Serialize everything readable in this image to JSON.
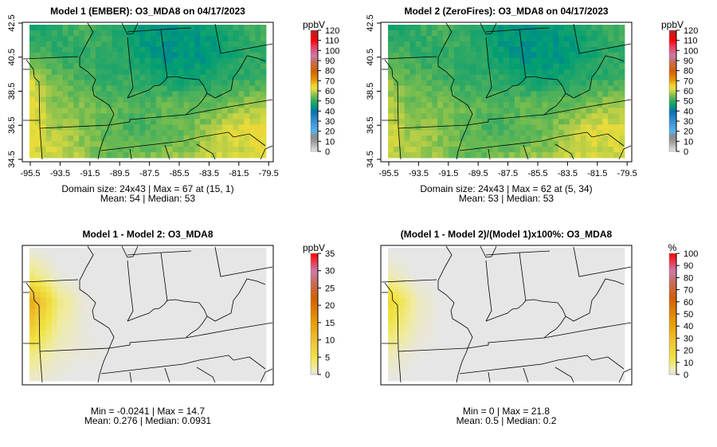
{
  "chart_data": [
    {
      "type": "heatmap",
      "title": "Model 1 (EMBER): O3_MDA8 on 04/17/2023",
      "domain_size": "24x43",
      "stats_line1": "Domain size: 24x43 | Max = 67 at (15, 1)",
      "stats_line2": "Mean: 54 |  Median: 53",
      "xticks": [
        "-95.5",
        "-93.5",
        "-91.5",
        "-89.5",
        "-87.5",
        "-85.5",
        "-83.5",
        "-81.5",
        "-79.5"
      ],
      "yticks": [
        "42.5",
        "40.5",
        "38.5",
        "36.5",
        "34.5"
      ],
      "colorbar": {
        "label": "ppbV",
        "min": 0,
        "max": 120,
        "ticks": [
          "0",
          "10",
          "20",
          "30",
          "40",
          "50",
          "60",
          "70",
          "80",
          "90",
          "100",
          "110",
          "120"
        ],
        "scale": "ozone"
      },
      "approx_grid_rows_north_to_south": [
        [
          48,
          50,
          52,
          50,
          45,
          44,
          44,
          46,
          50,
          52
        ],
        [
          52,
          50,
          50,
          50,
          47,
          44,
          44,
          44,
          48,
          50
        ],
        [
          60,
          54,
          52,
          50,
          50,
          48,
          46,
          48,
          50,
          50
        ],
        [
          62,
          56,
          55,
          54,
          52,
          54,
          54,
          54,
          56,
          58
        ],
        [
          62,
          58,
          56,
          54,
          52,
          53,
          54,
          58,
          62,
          64
        ],
        [
          62,
          60,
          58,
          54,
          54,
          56,
          57,
          60,
          60,
          62
        ]
      ]
    },
    {
      "type": "heatmap",
      "title": "Model 2 (ZeroFires): O3_MDA8 on 04/17/2023",
      "domain_size": "24x43",
      "stats_line1": "Domain size: 24x43 | Max = 62 at (5, 34)",
      "stats_line2": "Mean: 53 |  Median: 53",
      "xticks": [
        "-95.5",
        "-93.5",
        "-91.5",
        "-89.5",
        "-87.5",
        "-85.5",
        "-83.5",
        "-81.5",
        "-79.5"
      ],
      "yticks": [
        "42.5",
        "40.5",
        "38.5",
        "36.5",
        "34.5"
      ],
      "colorbar": {
        "label": "ppbV",
        "min": 0,
        "max": 120,
        "ticks": [
          "0",
          "10",
          "20",
          "30",
          "40",
          "50",
          "60",
          "70",
          "80",
          "90",
          "100",
          "110",
          "120"
        ],
        "scale": "ozone"
      },
      "approx_grid_rows_north_to_south": [
        [
          48,
          50,
          52,
          50,
          45,
          44,
          44,
          46,
          50,
          52
        ],
        [
          52,
          50,
          50,
          50,
          47,
          44,
          44,
          44,
          48,
          50
        ],
        [
          56,
          53,
          52,
          50,
          50,
          48,
          46,
          48,
          50,
          50
        ],
        [
          58,
          55,
          55,
          54,
          52,
          54,
          54,
          54,
          56,
          58
        ],
        [
          60,
          57,
          56,
          54,
          52,
          53,
          54,
          58,
          62,
          62
        ],
        [
          60,
          58,
          57,
          54,
          54,
          56,
          57,
          60,
          60,
          60
        ]
      ]
    },
    {
      "type": "heatmap",
      "title": "Model 1 - Model 2: O3_MDA8",
      "stats_line1": "Min = -0.0241 | Max = 14.7",
      "stats_line2": "Mean: 0.276 |  Median: 0.0931",
      "colorbar": {
        "label": "ppbV",
        "min": 0,
        "max": 35,
        "ticks": [
          "0",
          "5",
          "10",
          "15",
          "20",
          "25",
          "30",
          "35"
        ],
        "scale": "diff"
      },
      "approx_grid_rows_north_to_south": [
        [
          0.5,
          0,
          0,
          0,
          0,
          0,
          0,
          0,
          0,
          0
        ],
        [
          3,
          0.5,
          0,
          0,
          0,
          0,
          0,
          0,
          0,
          0
        ],
        [
          13,
          3,
          0.5,
          0,
          0,
          0,
          0,
          0,
          0,
          0
        ],
        [
          8,
          2,
          0.5,
          0,
          0,
          0,
          0,
          0,
          0,
          0
        ],
        [
          3,
          1,
          0.5,
          0.3,
          0,
          0,
          0,
          0,
          0,
          0
        ],
        [
          1,
          0.4,
          0,
          0,
          0,
          0,
          0,
          0,
          0,
          0
        ]
      ]
    },
    {
      "type": "heatmap",
      "title": "(Model 1 - Model 2)/(Model 1)x100%: O3_MDA8",
      "stats_line1": "Min = 0 | Max = 21.8",
      "stats_line2": "Mean: 0.5 |  Median: 0.2",
      "colorbar": {
        "label": "%",
        "min": 0,
        "max": 100,
        "ticks": [
          "0",
          "10",
          "20",
          "30",
          "40",
          "50",
          "60",
          "70",
          "80",
          "90",
          "100"
        ],
        "scale": "diff"
      },
      "approx_grid_rows_north_to_south": [
        [
          0.5,
          0,
          0,
          0,
          0,
          0,
          0,
          0,
          0,
          0
        ],
        [
          4,
          0.5,
          0,
          0,
          0,
          0,
          0,
          0,
          0,
          0
        ],
        [
          19,
          4,
          0.5,
          0,
          0,
          0,
          0,
          0,
          0,
          0
        ],
        [
          12,
          3,
          0.5,
          0,
          0,
          0,
          0,
          0,
          0,
          0
        ],
        [
          4,
          1,
          0.5,
          0.3,
          0,
          0,
          0,
          0,
          0,
          0
        ],
        [
          1,
          0.4,
          0,
          0,
          0,
          0,
          0,
          0,
          0,
          0
        ]
      ]
    }
  ],
  "colorscales": {
    "ozone": [
      [
        0,
        "#e8e8e8"
      ],
      [
        10,
        "#9a9a9a"
      ],
      [
        15,
        "#8a8a8a"
      ],
      [
        20,
        "#56b4e9"
      ],
      [
        30,
        "#3a8fd0"
      ],
      [
        40,
        "#0072b2"
      ],
      [
        45,
        "#009e73"
      ],
      [
        50,
        "#2fa866"
      ],
      [
        55,
        "#6fbb50"
      ],
      [
        58,
        "#a8c94a"
      ],
      [
        62,
        "#e6dd3c"
      ],
      [
        66,
        "#f0d030"
      ],
      [
        70,
        "#e69f00"
      ],
      [
        80,
        "#d55e00"
      ],
      [
        88,
        "#c86a50"
      ],
      [
        95,
        "#cc79a7"
      ],
      [
        105,
        "#ee3355"
      ],
      [
        110,
        "#ff0000"
      ],
      [
        120,
        "#b22222"
      ]
    ],
    "diff": [
      [
        0,
        "#e6e6e6"
      ],
      [
        0.2,
        "#e6e6e6"
      ],
      [
        2,
        "#f0eba0"
      ],
      [
        5,
        "#f0e442"
      ],
      [
        10,
        "#eec030"
      ],
      [
        15,
        "#e69f00"
      ],
      [
        22,
        "#d55e00"
      ],
      [
        26,
        "#c86a50"
      ],
      [
        30,
        "#cc79a7"
      ],
      [
        35,
        "#ff0000"
      ]
    ],
    "diff_pct_scale_factor": 2.857
  }
}
